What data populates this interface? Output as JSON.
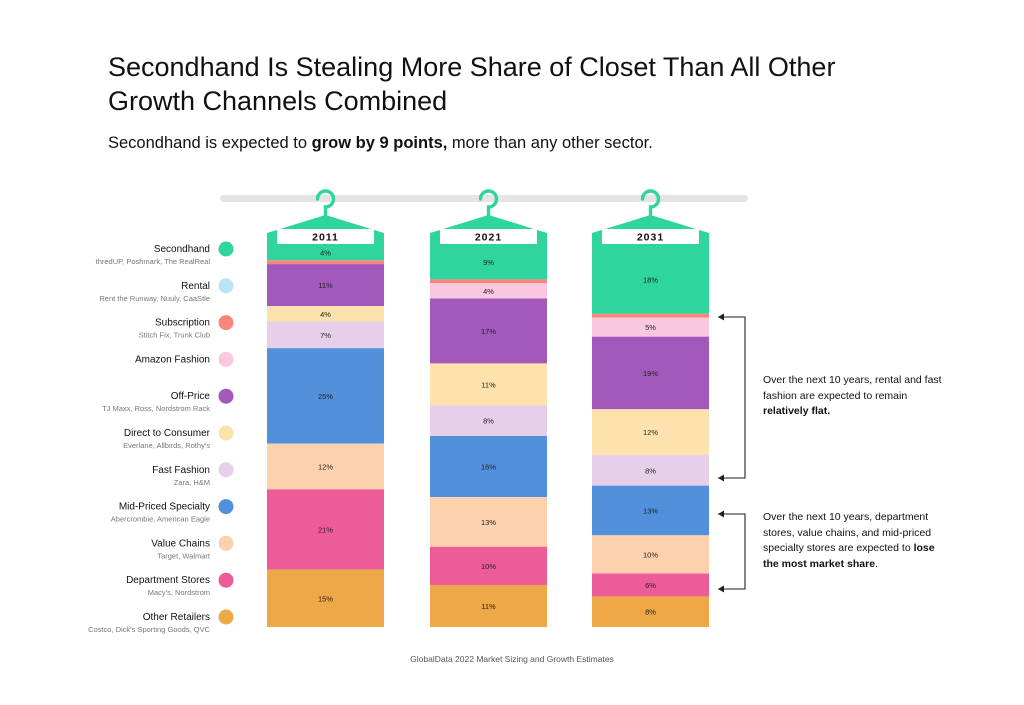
{
  "title": "Secondhand Is Stealing More Share of Closet Than All Other Growth Channels Combined",
  "subtitle": {
    "before": "Secondhand is expected to ",
    "bold": "grow by 9 points,",
    "after": " more than any other sector."
  },
  "source": "GlobalData 2022 Market Sizing and Growth Estimates",
  "notes": {
    "flat": {
      "before": "Over the next 10 years, rental and fast fashion are expected to remain ",
      "bold": "relatively flat.",
      "after": ""
    },
    "lose": {
      "before": "Over the next 10 years, department stores, value chains, and mid-priced specialty stores are expected to ",
      "bold": "lose the most market share",
      "after": "."
    }
  },
  "chart_data": {
    "type": "bar",
    "stacked": true,
    "orientation": "vertical",
    "categories": [
      "2011",
      "2021",
      "2031"
    ],
    "unit": "%",
    "series": [
      {
        "name": "Secondhand",
        "sub": "thredUP, Poshmark, The RealReal",
        "color": "#2ED59C",
        "values": [
          4,
          9,
          18
        ],
        "labels": [
          "4%",
          "9%",
          "18%"
        ]
      },
      {
        "name": "Rental",
        "sub": "Rent the Runway, Nuuly, CaaStle",
        "color": "#B9E3F7",
        "values": [
          0,
          0,
          0
        ],
        "labels": [
          "",
          "",
          ""
        ]
      },
      {
        "name": "Subscription",
        "sub": "Stitch Fix, Trunk Club",
        "color": "#F9857B",
        "values": [
          1,
          1,
          1
        ],
        "labels": [
          "",
          "",
          ""
        ]
      },
      {
        "name": "Amazon Fashion",
        "sub": "",
        "color": "#F9C8DE",
        "values": [
          0,
          4,
          5
        ],
        "labels": [
          "",
          "4%",
          "5%"
        ]
      },
      {
        "name": "Off-Price",
        "sub": "TJ Maxx, Ross, Nordstrom Rack",
        "color": "#A259BB",
        "values": [
          11,
          17,
          19
        ],
        "labels": [
          "11%",
          "17%",
          "19%"
        ]
      },
      {
        "name": "Direct to Consumer",
        "sub": "Everlane, Allbirds, Rothy's",
        "color": "#FDE2AE",
        "values": [
          4,
          11,
          12
        ],
        "labels": [
          "4%",
          "11%",
          "12%"
        ]
      },
      {
        "name": "Fast Fashion",
        "sub": "Zara, H&M",
        "color": "#E5CFE9",
        "values": [
          7,
          8,
          8
        ],
        "labels": [
          "7%",
          "8%",
          "8%"
        ]
      },
      {
        "name": "Mid-Priced Specialty",
        "sub": "Abercrombie, American Eagle",
        "color": "#5290DC",
        "values": [
          25,
          16,
          13
        ],
        "labels": [
          "25%",
          "16%",
          "13%"
        ]
      },
      {
        "name": "Value Chains",
        "sub": "Target, Walmart",
        "color": "#FDD0AE",
        "values": [
          12,
          13,
          10
        ],
        "labels": [
          "12%",
          "13%",
          "10%"
        ]
      },
      {
        "name": "Department Stores",
        "sub": "Macy's, Nordstrom",
        "color": "#EE5C98",
        "values": [
          21,
          10,
          6
        ],
        "labels": [
          "21%",
          "10%",
          "6%"
        ]
      },
      {
        "name": "Other Retailers",
        "sub": "Costco, Dick's Sporting Goods, QVC",
        "color": "#EEA845",
        "values": [
          15,
          11,
          8
        ],
        "labels": [
          "15%",
          "11%",
          "8%"
        ]
      }
    ]
  }
}
